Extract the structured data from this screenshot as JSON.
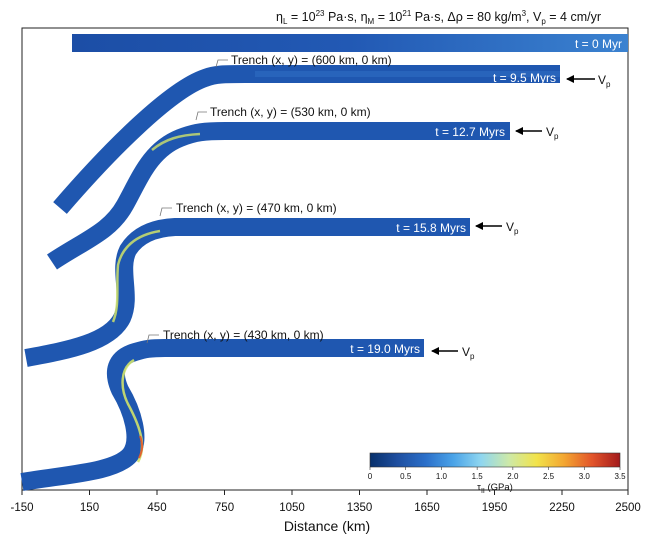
{
  "header": {
    "params": "ηL = 10^23 Pa·s, ηM = 10^21 Pa·s, Δρ = 80 kg/m³, Vp = 4 cm/yr",
    "parts": {
      "eta": "η",
      "sub_L": "L",
      "eq_L": " = 10",
      "exp_L": "23",
      "unit_L": " Pa·s, ",
      "sub_M": "M",
      "eq_M": " = 10",
      "exp_M": "21",
      "unit_M": " Pa·s, ",
      "drho": "Δρ = 80 kg/m",
      "cube": "3",
      "vp_pre": ", V",
      "vp_sub": "p",
      "vp_val": " = 4 cm/yr"
    }
  },
  "panels": [
    {
      "time": "t = 0 Myr",
      "trench": "",
      "arrow": false
    },
    {
      "time": "t = 9.5 Myrs",
      "trench": "Trench (x, y) = (600 km, 0 km)",
      "arrow": true
    },
    {
      "time": "t = 12.7 Myrs",
      "trench": "Trench (x, y) = (530 km, 0 km)",
      "arrow": true
    },
    {
      "time": "t = 15.8 Myrs",
      "trench": "Trench (x, y) = (470 km, 0 km)",
      "arrow": true
    },
    {
      "time": "t = 19.0 Myrs",
      "trench": "Trench (x, y) = (430 km, 0 km)",
      "arrow": true
    }
  ],
  "velocity_label": {
    "main": "V",
    "sub": "p"
  },
  "x_axis": {
    "label": "Distance (km)",
    "ticks": [
      "-150",
      "150",
      "450",
      "750",
      "1050",
      "1350",
      "1650",
      "1950",
      "2250",
      "2500"
    ]
  },
  "colorbar": {
    "label_main": "τ",
    "label_sub": "II",
    "label_unit": " (GPa)",
    "ticks": [
      "0",
      "0.5",
      "1.0",
      "1.5",
      "2.0",
      "2.5",
      "3.0",
      "3.5"
    ],
    "colors": [
      "#08306b",
      "#1f4fa0",
      "#2b6fc9",
      "#4aa3e8",
      "#8fd6f0",
      "#cde9a8",
      "#f2e34a",
      "#f3a531",
      "#e2542a",
      "#a31a1c"
    ]
  },
  "colors": {
    "slab": "#1f57b0",
    "slab_light": "#3f88d6",
    "stress_high": "#cfe26a",
    "stress_peak": "#e2542a"
  }
}
